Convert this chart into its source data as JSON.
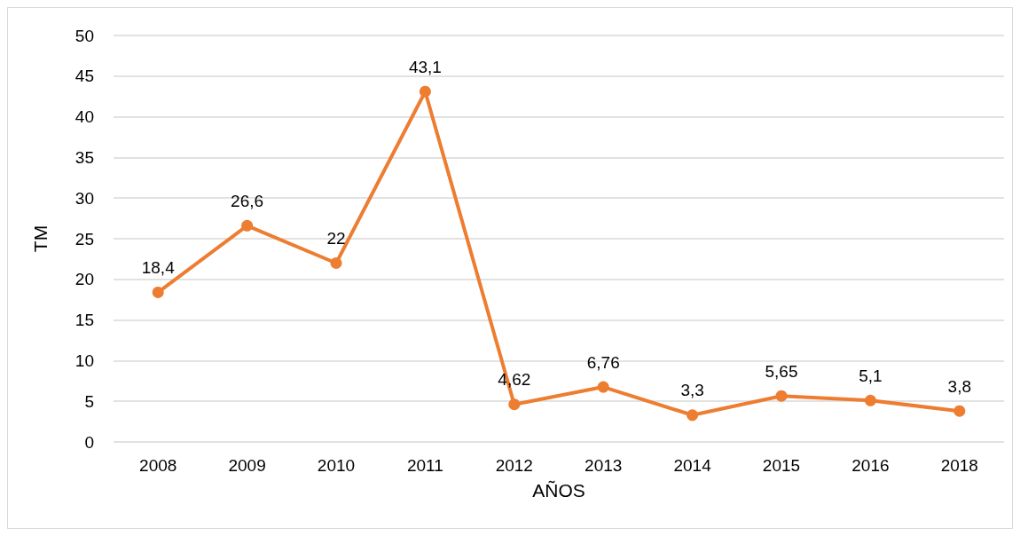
{
  "chart_data": {
    "type": "line",
    "xlabel": "AÑOS",
    "ylabel": "TM",
    "categories": [
      "2008",
      "2009",
      "2010",
      "2011",
      "2012",
      "2013",
      "2014",
      "2015",
      "2016",
      "2018"
    ],
    "series": [
      {
        "color": "#ed7d31",
        "values": [
          18.4,
          26.6,
          22,
          43.1,
          4.62,
          6.76,
          3.3,
          5.65,
          5.1,
          3.8
        ],
        "value_labels": [
          "18,4",
          "26,6",
          "22",
          "43,1",
          "4,62",
          "6,76",
          "3,3",
          "5,65",
          "5,1",
          "3,8"
        ]
      }
    ],
    "ylim": [
      0,
      50
    ],
    "yticks": [
      0,
      5,
      10,
      15,
      20,
      25,
      30,
      35,
      40,
      45,
      50
    ],
    "grid": "y",
    "marker": "circle",
    "line_style": "solid"
  }
}
